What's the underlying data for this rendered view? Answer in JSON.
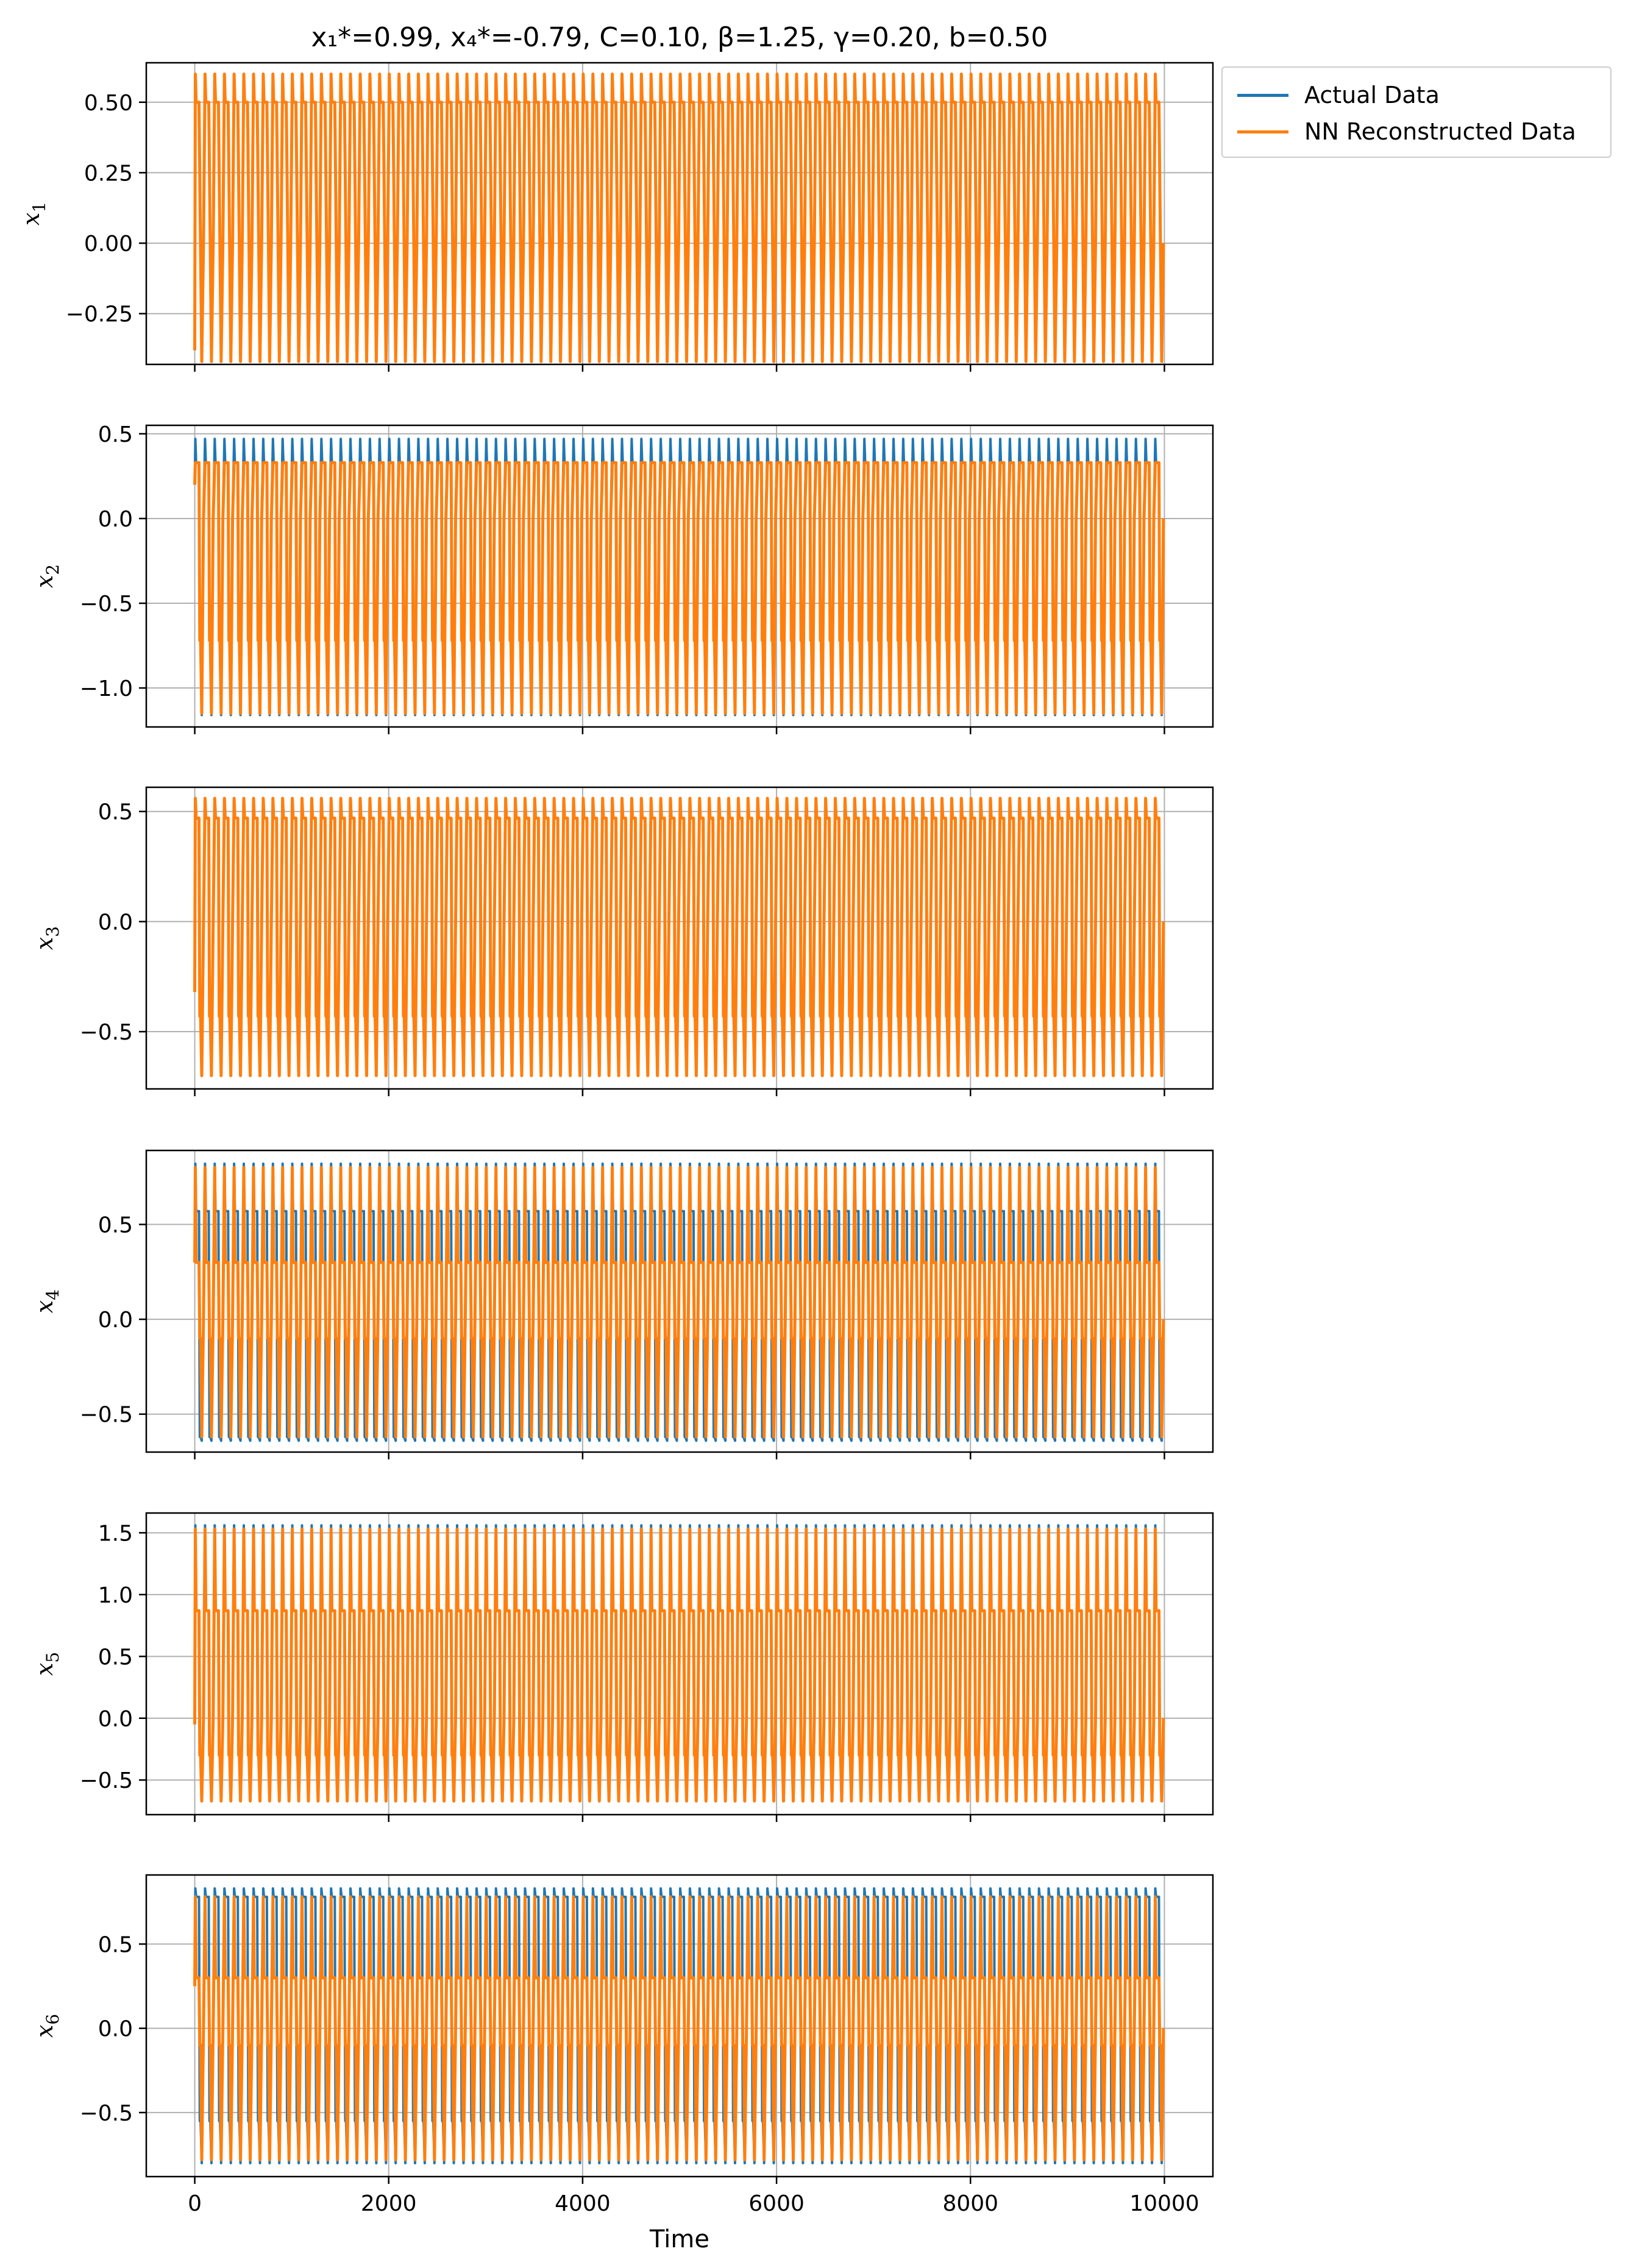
{
  "colors": {
    "actual": "#1f77b4",
    "reconstructed": "#ff7f0e",
    "grid": "#b0b0b0",
    "axes": "#000000"
  },
  "legend": {
    "placement": "outside-top-right",
    "entries": [
      {
        "label": "Actual Data",
        "color": "#1f77b4"
      },
      {
        "label": "NN Reconstructed Data",
        "color": "#ff7f0e"
      }
    ]
  },
  "chart_data": {
    "type": "line",
    "title": "x₁*=0.99,  x₄*=-0.79,  C=0.10, β=1.25, γ=0.20, b=0.50",
    "xlabel": "Time",
    "xlim": [
      -500,
      10500
    ],
    "x_ticks": [
      0,
      2000,
      4000,
      6000,
      8000,
      10000
    ],
    "x_tick_labels": [
      "0",
      "2000",
      "4000",
      "6000",
      "8000",
      "10000"
    ],
    "grid": true,
    "series_names": [
      "Actual Data",
      "NN Reconstructed Data"
    ],
    "cycles_shown": 100,
    "panels": [
      {
        "ylabel_base": "x",
        "ylabel_sub": "1",
        "ylim": [
          -0.43,
          0.64
        ],
        "y_ticks": [
          -0.25,
          0,
          0.25,
          0.5
        ],
        "y_tick_labels": [
          "−0.25",
          "0.00",
          "0.25",
          "0.50"
        ],
        "actual": {
          "max": 0.6,
          "min": -0.42,
          "plateau": 0.5
        },
        "reconstructed": {
          "max": 0.6,
          "min": -0.42,
          "plateau": 0.5
        },
        "start_value": -0.38
      },
      {
        "ylabel_base": "x",
        "ylabel_sub": "2",
        "ylim": [
          -1.23,
          0.55
        ],
        "y_ticks": [
          -1.0,
          -0.5,
          0,
          0.5
        ],
        "y_tick_labels": [
          "−1.0",
          "−0.5",
          "0.0",
          "0.5"
        ],
        "actual": {
          "max": 0.47,
          "min": -1.16,
          "plateau": 0.33,
          "trough": -0.72
        },
        "reconstructed": {
          "max": 0.33,
          "min": -1.15,
          "plateau": 0.33,
          "trough": -0.72
        },
        "start_value": 0.2
      },
      {
        "ylabel_base": "x",
        "ylabel_sub": "3",
        "ylim": [
          -0.76,
          0.61
        ],
        "y_ticks": [
          -0.5,
          0,
          0.5
        ],
        "y_tick_labels": [
          "−0.5",
          "0.0",
          "0.5"
        ],
        "actual": {
          "max": 0.56,
          "min": -0.7,
          "plateau": 0.47,
          "trough": -0.43
        },
        "reconstructed": {
          "max": 0.56,
          "min": -0.7,
          "plateau": 0.47,
          "trough": -0.43
        },
        "start_value": -0.32
      },
      {
        "ylabel_base": "x",
        "ylabel_sub": "4",
        "ylim": [
          -0.7,
          0.89
        ],
        "y_ticks": [
          -0.5,
          0,
          0.5
        ],
        "y_tick_labels": [
          "−0.5",
          "0.0",
          "0.5"
        ],
        "actual": {
          "max": 0.82,
          "min": -0.64,
          "plateau": 0.57,
          "trough": -0.62
        },
        "reconstructed": {
          "max": 0.8,
          "min": -0.62,
          "plateau": 0.3,
          "trough": -0.1
        },
        "start_value": 0.3
      },
      {
        "ylabel_base": "x",
        "ylabel_sub": "5",
        "ylim": [
          -0.78,
          1.66
        ],
        "y_ticks": [
          -0.5,
          0,
          0.5,
          1.0,
          1.5
        ],
        "y_tick_labels": [
          "−0.5",
          "0.0",
          "0.5",
          "1.0",
          "1.5"
        ],
        "actual": {
          "max": 1.56,
          "min": -0.67,
          "plateau": 0.87,
          "trough": -0.3
        },
        "reconstructed": {
          "max": 1.53,
          "min": -0.67,
          "plateau": 0.87,
          "trough": -0.3
        },
        "start_value": -0.05
      },
      {
        "ylabel_base": "x",
        "ylabel_sub": "6",
        "ylim": [
          -0.88,
          0.91
        ],
        "y_ticks": [
          -0.5,
          0,
          0.5
        ],
        "y_tick_labels": [
          "−0.5",
          "0.0",
          "0.5"
        ],
        "actual": {
          "max": 0.83,
          "min": -0.8,
          "plateau": 0.78,
          "trough": -0.55
        },
        "reconstructed": {
          "max": 0.78,
          "min": -0.78,
          "plateau": 0.3,
          "trough": -0.1
        },
        "start_value": 0.25
      }
    ]
  }
}
